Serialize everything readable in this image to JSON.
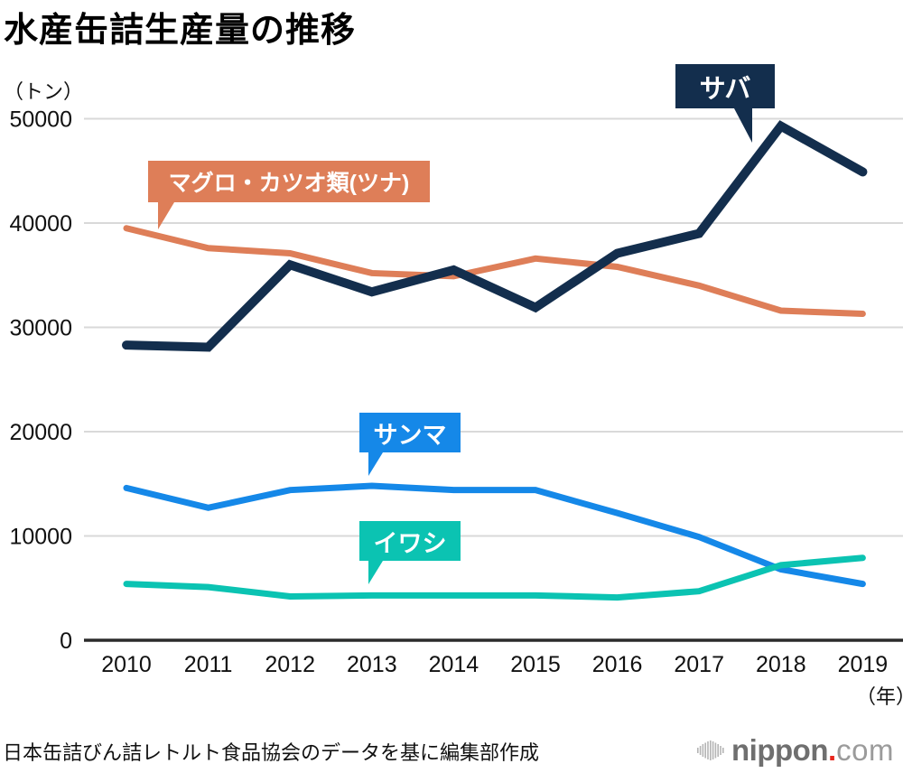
{
  "title": "水産缶詰生産量の推移",
  "y_axis_unit": "（トン）",
  "x_axis_unit": "（年）",
  "source": "日本缶詰びん詰レトルト食品協会のデータを基に編集部作成",
  "logo": {
    "name": "nippon.com",
    "text_main": "nippon",
    "text_dot": ".",
    "text_tld": "com",
    "color_main": "#6F6F6F",
    "color_tld": "#9B9B9B",
    "color_dot": "#E8261D",
    "color_bars": "#B5B5B5"
  },
  "chart_data": {
    "type": "line",
    "title": "水産缶詰生産量の推移",
    "ylabel": "（トン）",
    "xlabel": "（年）",
    "x": [
      2010,
      2011,
      2012,
      2013,
      2014,
      2015,
      2016,
      2017,
      2018,
      2019
    ],
    "yticks": [
      0,
      10000,
      20000,
      30000,
      40000,
      50000
    ],
    "ylim": [
      0,
      53000
    ],
    "grid": true,
    "grid_color": "#D9D9D9",
    "axis_color": "#2B2B2B",
    "legend_position": "callouts-on-chart",
    "series": [
      {
        "name": "サバ",
        "color": "#132E4D",
        "line_width": 10,
        "values": [
          28300,
          28100,
          36000,
          33400,
          35500,
          31900,
          37100,
          39000,
          49300,
          44900
        ]
      },
      {
        "name": "マグロ・カツオ類(ツナ)",
        "color": "#DE7E58",
        "line_width": 7,
        "values": [
          39500,
          37600,
          37100,
          35200,
          34900,
          36600,
          35800,
          34000,
          31600,
          31300
        ]
      },
      {
        "name": "サンマ",
        "color": "#1588E8",
        "line_width": 7,
        "values": [
          14600,
          12700,
          14400,
          14800,
          14400,
          14400,
          12200,
          9900,
          6800,
          5400
        ]
      },
      {
        "name": "イワシ",
        "color": "#0BC3B2",
        "line_width": 7,
        "values": [
          5400,
          5100,
          4200,
          4300,
          4300,
          4300,
          4100,
          4700,
          7200,
          7900
        ]
      }
    ]
  }
}
